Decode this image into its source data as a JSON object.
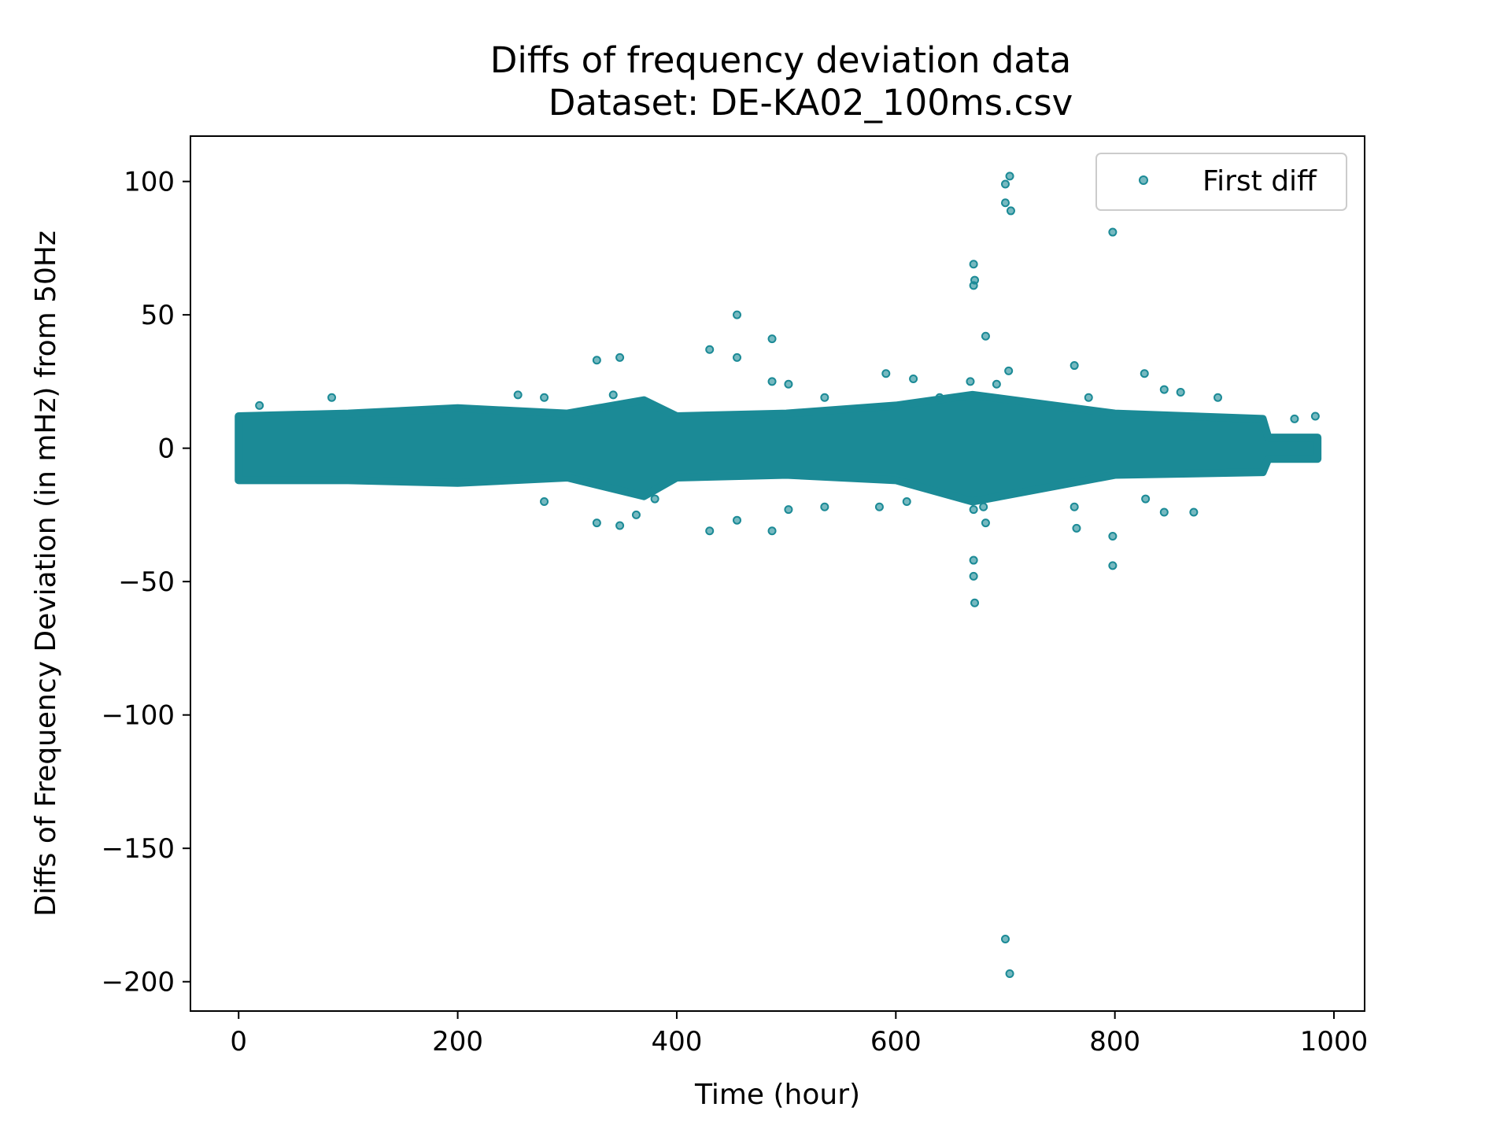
{
  "chart_data": {
    "type": "scatter",
    "title": "Diffs of frequency deviation data",
    "subtitle": "Dataset: DE-KA02_100ms.csv",
    "xlabel": "Time (hour)",
    "ylabel": "Diffs of Frequency Deviation (in mHz) from 50Hz",
    "xlim": [
      -44,
      1028
    ],
    "ylim": [
      -211,
      117
    ],
    "x_ticks": [
      {
        "value": 0,
        "label": "0"
      },
      {
        "value": 200,
        "label": "200"
      },
      {
        "value": 400,
        "label": "400"
      },
      {
        "value": 600,
        "label": "600"
      },
      {
        "value": 800,
        "label": "800"
      },
      {
        "value": 1000,
        "label": "1000"
      }
    ],
    "y_ticks": [
      {
        "value": 100,
        "label": "100"
      },
      {
        "value": 50,
        "label": "50"
      },
      {
        "value": 0,
        "label": "0"
      },
      {
        "value": -50,
        "label": "−50"
      },
      {
        "value": -100,
        "label": "−100"
      },
      {
        "value": -150,
        "label": "−150"
      },
      {
        "value": -200,
        "label": "−200"
      }
    ],
    "grid": false,
    "legend": {
      "position": "top-right",
      "entries": [
        {
          "label": "First diff",
          "color": "#1b8a96"
        }
      ]
    },
    "series": [
      {
        "name": "First diff",
        "color": "#1b8a96",
        "x_range": [
          0,
          985
        ],
        "dense_band": [
          {
            "x": 0,
            "y_low": -12,
            "y_high": 12
          },
          {
            "x": 100,
            "y_low": -12,
            "y_high": 13
          },
          {
            "x": 200,
            "y_low": -13,
            "y_high": 15
          },
          {
            "x": 300,
            "y_low": -11,
            "y_high": 13
          },
          {
            "x": 370,
            "y_low": -18,
            "y_high": 18
          },
          {
            "x": 400,
            "y_low": -11,
            "y_high": 12
          },
          {
            "x": 500,
            "y_low": -10,
            "y_high": 13
          },
          {
            "x": 600,
            "y_low": -12,
            "y_high": 16
          },
          {
            "x": 670,
            "y_low": -20,
            "y_high": 20
          },
          {
            "x": 800,
            "y_low": -10,
            "y_high": 13
          },
          {
            "x": 935,
            "y_low": -9,
            "y_high": 11
          },
          {
            "x": 940,
            "y_low": -4,
            "y_high": 4
          },
          {
            "x": 985,
            "y_low": -4,
            "y_high": 4
          }
        ],
        "outliers": [
          {
            "x": 704,
            "y": 102
          },
          {
            "x": 700,
            "y": 99
          },
          {
            "x": 700,
            "y": 92
          },
          {
            "x": 705,
            "y": 89
          },
          {
            "x": 798,
            "y": 81
          },
          {
            "x": 671,
            "y": 69
          },
          {
            "x": 672,
            "y": 63
          },
          {
            "x": 671,
            "y": 61
          },
          {
            "x": 455,
            "y": 50
          },
          {
            "x": 682,
            "y": 42
          },
          {
            "x": 487,
            "y": 41
          },
          {
            "x": 430,
            "y": 37
          },
          {
            "x": 455,
            "y": 34
          },
          {
            "x": 327,
            "y": 33
          },
          {
            "x": 348,
            "y": 34
          },
          {
            "x": 763,
            "y": 31
          },
          {
            "x": 703,
            "y": 29
          },
          {
            "x": 591,
            "y": 28
          },
          {
            "x": 827,
            "y": 28
          },
          {
            "x": 616,
            "y": 26
          },
          {
            "x": 487,
            "y": 25
          },
          {
            "x": 502,
            "y": 24
          },
          {
            "x": 668,
            "y": 25
          },
          {
            "x": 692,
            "y": 24
          },
          {
            "x": 845,
            "y": 22
          },
          {
            "x": 860,
            "y": 21
          },
          {
            "x": 19,
            "y": 16
          },
          {
            "x": 85,
            "y": 19
          },
          {
            "x": 255,
            "y": 20
          },
          {
            "x": 279,
            "y": 19
          },
          {
            "x": 342,
            "y": 20
          },
          {
            "x": 535,
            "y": 19
          },
          {
            "x": 640,
            "y": 19
          },
          {
            "x": 776,
            "y": 19
          },
          {
            "x": 894,
            "y": 19
          },
          {
            "x": 983,
            "y": 12
          },
          {
            "x": 964,
            "y": 11
          },
          {
            "x": 279,
            "y": -20
          },
          {
            "x": 327,
            "y": -28
          },
          {
            "x": 348,
            "y": -29
          },
          {
            "x": 363,
            "y": -25
          },
          {
            "x": 380,
            "y": -19
          },
          {
            "x": 430,
            "y": -31
          },
          {
            "x": 455,
            "y": -27
          },
          {
            "x": 487,
            "y": -31
          },
          {
            "x": 502,
            "y": -23
          },
          {
            "x": 535,
            "y": -22
          },
          {
            "x": 585,
            "y": -22
          },
          {
            "x": 610,
            "y": -20
          },
          {
            "x": 671,
            "y": -23
          },
          {
            "x": 682,
            "y": -28
          },
          {
            "x": 680,
            "y": -22
          },
          {
            "x": 763,
            "y": -22
          },
          {
            "x": 765,
            "y": -30
          },
          {
            "x": 798,
            "y": -33
          },
          {
            "x": 828,
            "y": -19
          },
          {
            "x": 845,
            "y": -24
          },
          {
            "x": 872,
            "y": -24
          },
          {
            "x": 671,
            "y": -42
          },
          {
            "x": 671,
            "y": -48
          },
          {
            "x": 798,
            "y": -44
          },
          {
            "x": 672,
            "y": -58
          },
          {
            "x": 700,
            "y": -184
          },
          {
            "x": 704,
            "y": -197
          }
        ]
      }
    ]
  }
}
